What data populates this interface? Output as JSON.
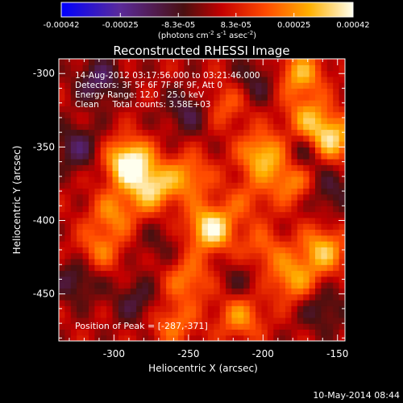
{
  "chart_data": {
    "type": "heatmap",
    "title": "Reconstructed RHESSI Image",
    "xlabel": "Heliocentric X (arcsec)",
    "ylabel": "Heliocentric Y (arcsec)",
    "xlim": [
      -337,
      -145
    ],
    "ylim": [
      -482,
      -290
    ],
    "xticks": [
      -300,
      -250,
      -200,
      -150
    ],
    "yticks": [
      -300,
      -350,
      -400,
      -450
    ],
    "colorbar": {
      "ticks": [
        -0.00042,
        -0.00025,
        -8.3e-05,
        8.3e-05,
        0.00025,
        0.00042
      ],
      "tick_labels": [
        "-0.00042",
        "-0.00025",
        "-8.3e-05",
        "8.3e-05",
        "0.00025",
        "0.00042"
      ],
      "range": [
        -0.00042,
        0.00042
      ],
      "unit_label": "(photons cm-2 s-1 asec-2)",
      "colors": [
        "#0000ff",
        "#5a2a9a",
        "#8a1a1a",
        "#ff2a00",
        "#ffa500",
        "#ffffdd"
      ]
    },
    "info_lines": [
      "14-Aug-2012 03:17:56.000 to 03:21:46.000",
      "Detectors: 3F 5F 6F 7F 8F 9F, Att 0",
      "Energy Range: 12.0 - 25.0 keV",
      "Clean     Total counts: 3.58E+03"
    ],
    "peak_label": "Position of Peak = [-287,-371]",
    "peak": [
      -287,
      -371
    ],
    "blobs": [
      {
        "x": -290,
        "y": -360,
        "v": 0.00042
      },
      {
        "x": -275,
        "y": -378,
        "v": 0.0003
      },
      {
        "x": -235,
        "y": -405,
        "v": 0.00038
      },
      {
        "x": -250,
        "y": -370,
        "v": 0.00022
      },
      {
        "x": -200,
        "y": -355,
        "v": 0.0003
      },
      {
        "x": -180,
        "y": -372,
        "v": 0.00024
      },
      {
        "x": -155,
        "y": -345,
        "v": 0.00034
      },
      {
        "x": -170,
        "y": -330,
        "v": 0.00022
      },
      {
        "x": -160,
        "y": -420,
        "v": 0.00028
      },
      {
        "x": -180,
        "y": -440,
        "v": 0.00024
      },
      {
        "x": -300,
        "y": -395,
        "v": 0.0002
      },
      {
        "x": -310,
        "y": -420,
        "v": 0.00018
      },
      {
        "x": -250,
        "y": -440,
        "v": 0.0002
      },
      {
        "x": -215,
        "y": -465,
        "v": 0.00022
      },
      {
        "x": -260,
        "y": -470,
        "v": 0.00018
      },
      {
        "x": -200,
        "y": -420,
        "v": 0.00016
      },
      {
        "x": -175,
        "y": -300,
        "v": 0.00026
      },
      {
        "x": -225,
        "y": -320,
        "v": 0.00016
      },
      {
        "x": -325,
        "y": -350,
        "v": -0.00018
      },
      {
        "x": -310,
        "y": -305,
        "v": -0.0002
      },
      {
        "x": -250,
        "y": -325,
        "v": -0.00016
      },
      {
        "x": -205,
        "y": -305,
        "v": -0.00014
      },
      {
        "x": -172,
        "y": -355,
        "v": -0.0002
      },
      {
        "x": -155,
        "y": -380,
        "v": -0.00014
      },
      {
        "x": -325,
        "y": -440,
        "v": -0.00016
      },
      {
        "x": -285,
        "y": -455,
        "v": -0.00014
      },
      {
        "x": -215,
        "y": -440,
        "v": -0.0001
      },
      {
        "x": -160,
        "y": -460,
        "v": -0.00014
      },
      {
        "x": -270,
        "y": -415,
        "v": -8e-05
      },
      {
        "x": -210,
        "y": -385,
        "v": 0.00012
      }
    ]
  },
  "footer": {
    "date": "10-May-2014 08:44"
  }
}
